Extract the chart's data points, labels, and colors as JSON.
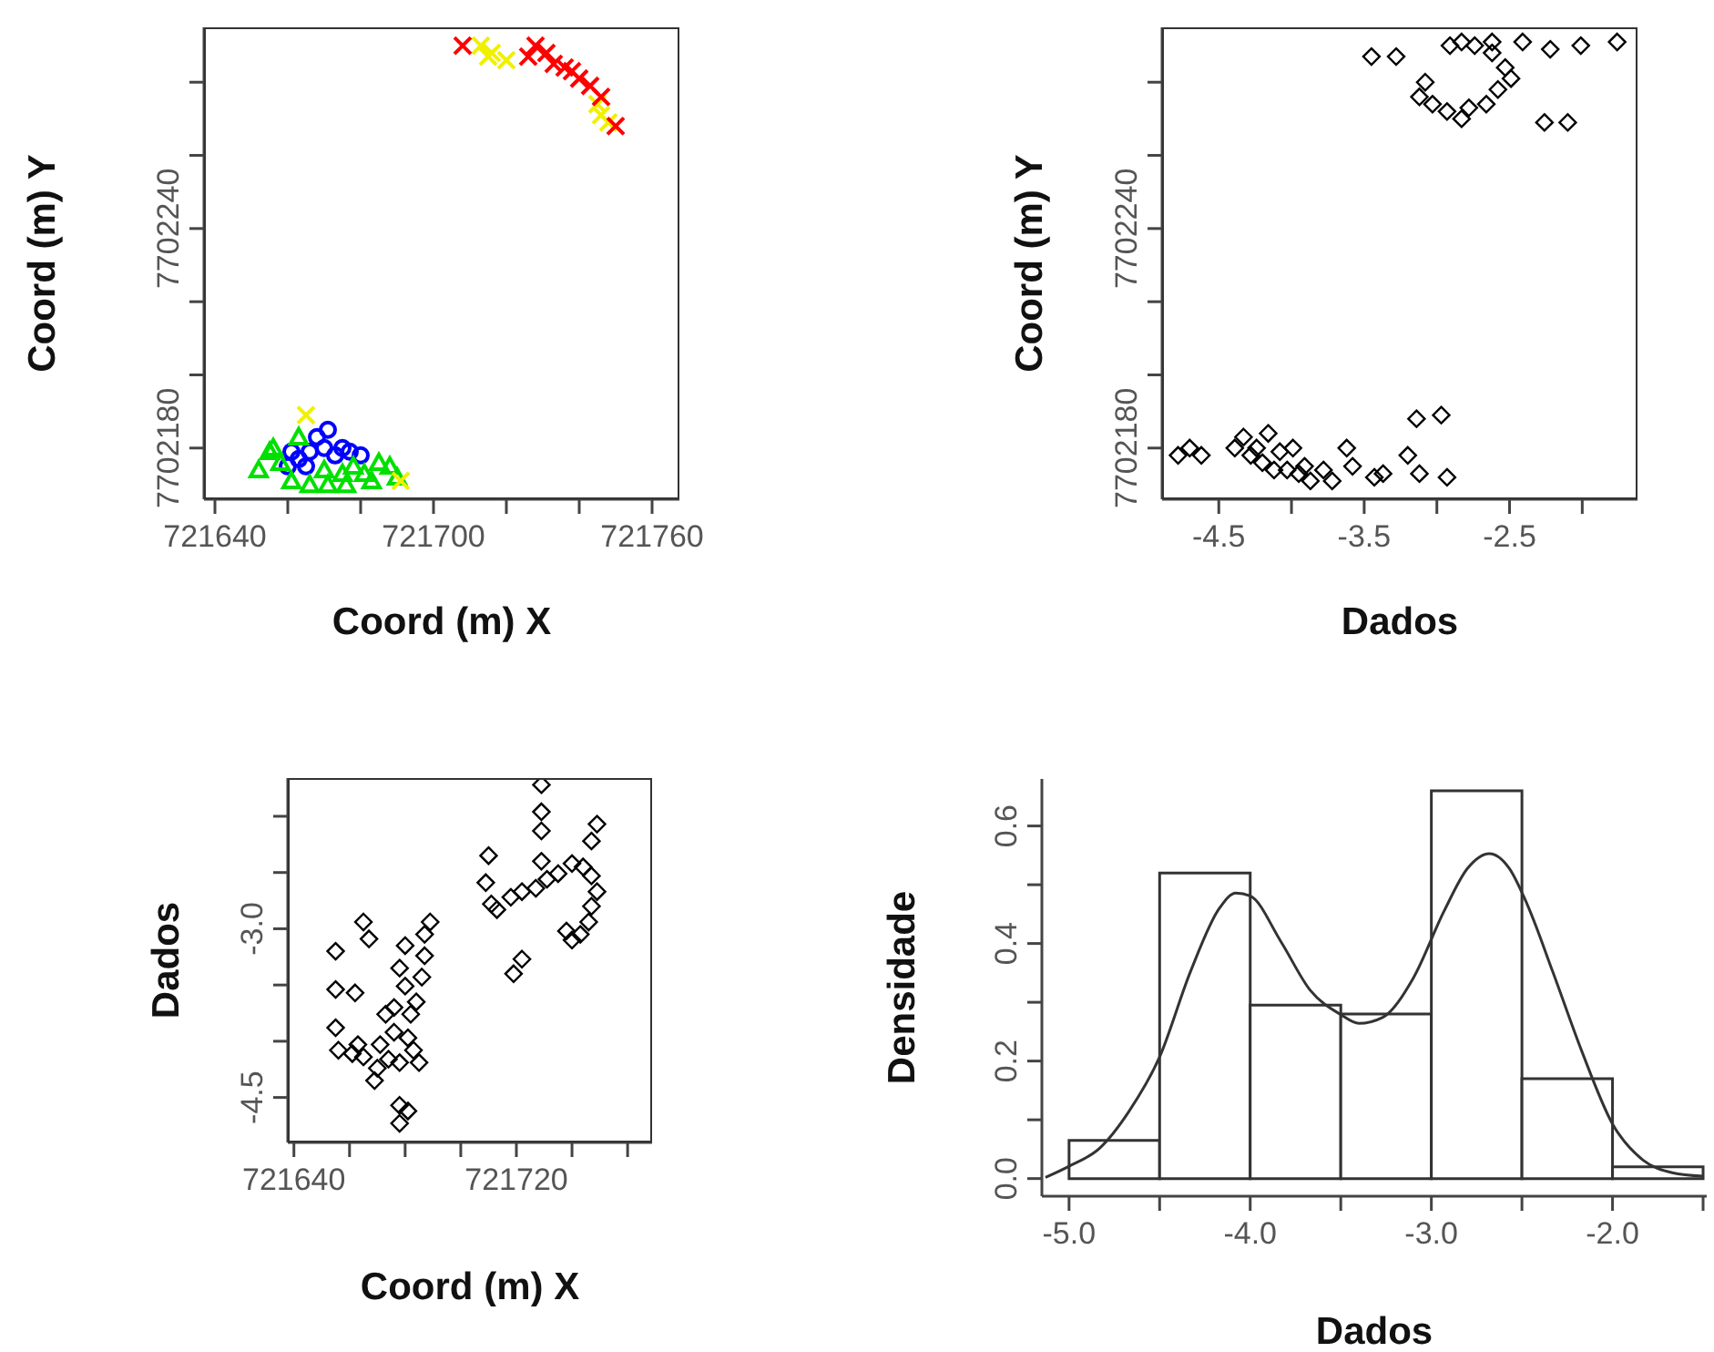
{
  "chart_data": [
    {
      "type": "scatter",
      "xlabel": "Coord (m) X",
      "ylabel": "Coord (m) Y",
      "xlim": [
        721637,
        721767.5
      ],
      "xticks": [
        721640,
        {
          "value": 721660,
          "label": null
        },
        {
          "value": 721680,
          "label": null
        },
        721700,
        {
          "value": 721720,
          "label": null
        },
        {
          "value": 721740,
          "label": null
        },
        721760
      ],
      "ylim": [
        7702166,
        7702295
      ],
      "yticks": [
        7702180,
        {
          "value": 7702200,
          "label": null
        },
        {
          "value": 7702220,
          "label": null
        },
        7702240,
        {
          "value": 7702260,
          "label": null
        },
        {
          "value": 7702280,
          "label": null
        }
      ],
      "series": [
        {
          "color": "#0000ff",
          "marker": "circle",
          "x": [
            721660,
            721661,
            721665,
            721668,
            721670,
            721671,
            721673,
            721675,
            721677,
            721680,
            721666,
            721663
          ],
          "values": [
            7702175,
            7702179,
            7702175,
            7702183,
            7702180,
            7702185,
            7702178,
            7702180,
            7702179,
            7702178,
            7702179,
            7702177
          ]
        },
        {
          "color": "#00e000",
          "marker": "triangle",
          "x": [
            721652,
            721655,
            721658,
            721661,
            721666,
            721671,
            721676,
            721681,
            721685,
            721688,
            721690,
            721670,
            721678,
            721663,
            721656,
            721675,
            721683
          ],
          "values": [
            7702174,
            7702179,
            7702176,
            7702171,
            7702170,
            7702170,
            7702170,
            7702173,
            7702176,
            7702175,
            7702172,
            7702174,
            7702175,
            7702183,
            7702180,
            7702173,
            7702171
          ]
        },
        {
          "color": "#f0f000",
          "marker": "cross",
          "x": [
            721665,
            721691,
            721713,
            721716,
            721720,
            721715,
            721746,
            721748,
            721745
          ],
          "values": [
            7702189,
            7702171,
            7702290,
            7702288,
            7702286,
            7702287,
            7702271,
            7702269,
            7702274
          ]
        },
        {
          "color": "#ff0000",
          "marker": "cross",
          "x": [
            721708,
            721728,
            721733,
            721736,
            721740,
            721743,
            721746,
            721750,
            721731,
            721738,
            721726
          ],
          "values": [
            7702290,
            7702290,
            7702285,
            7702284,
            7702281,
            7702279,
            7702276,
            7702268,
            7702288,
            7702283,
            7702287
          ]
        }
      ]
    },
    {
      "type": "scatter",
      "xlabel": "Dados",
      "ylabel": "Coord (m) Y",
      "xlim": [
        -4.89,
        -1.62
      ],
      "xticks": [
        -4.5,
        {
          "value": -4,
          "label": null
        },
        -3.5,
        {
          "value": -3,
          "label": null
        },
        -2.5,
        {
          "value": -2,
          "label": null
        }
      ],
      "ylim": [
        7702166,
        7702295
      ],
      "yticks": [
        7702180,
        {
          "value": 7702200,
          "label": null
        },
        {
          "value": 7702220,
          "label": null
        },
        7702240,
        {
          "value": 7702260,
          "label": null
        },
        {
          "value": 7702280,
          "label": null
        }
      ],
      "series": [
        {
          "color": "#000000",
          "marker": "diamond",
          "x": [
            -4.78,
            -4.7,
            -4.62,
            -4.39,
            -4.33,
            -4.28,
            -4.2,
            -4.16,
            -4.12,
            -4.08,
            -4.03,
            -3.99,
            -3.95,
            -3.87,
            -3.78,
            -3.72,
            -3.62,
            -3.58,
            -3.43,
            -3.37,
            -3.2,
            -3.12,
            -3.14,
            -2.97,
            -2.93,
            -4.24,
            -3.91,
            -3.45,
            -3.28,
            -3.08,
            -3.12,
            -3.03,
            -2.93,
            -2.83,
            -2.78,
            -2.66,
            -2.58,
            -2.49,
            -2.53,
            -2.62,
            -2.74,
            -2.83,
            -2.91,
            -2.62,
            -2.41,
            -2.22,
            -2.01,
            -1.76,
            -2.26,
            -2.1
          ],
          "values": [
            7702178,
            7702180,
            7702178,
            7702180,
            7702183,
            7702178,
            7702176,
            7702184,
            7702174,
            7702179,
            7702174,
            7702180,
            7702173,
            7702171,
            7702174,
            7702171,
            7702180,
            7702175,
            7702172,
            7702173,
            7702178,
            7702173,
            7702188,
            7702189,
            7702172,
            7702180,
            7702175,
            7702287,
            7702287,
            7702280,
            7702276,
            7702274,
            7702272,
            7702270,
            7702273,
            7702274,
            7702278,
            7702281,
            7702284,
            7702288,
            7702290,
            7702291,
            7702290,
            7702291,
            7702291,
            7702289,
            7702290,
            7702291,
            7702269,
            7702269
          ]
        }
      ]
    },
    {
      "type": "scatter",
      "xlabel": "Coord (m) X",
      "ylabel": "Dados",
      "xlim": [
        721637.8,
        721768.8
      ],
      "xticks": [
        721640,
        {
          "value": 721660,
          "label": null
        },
        {
          "value": 721680,
          "label": null
        },
        {
          "value": 721700,
          "label": null
        },
        721720,
        {
          "value": 721740,
          "label": null
        },
        {
          "value": 721760,
          "label": null
        }
      ],
      "ylim": [
        -4.9,
        -1.66
      ],
      "yticks": [
        -4.5,
        {
          "value": -4,
          "label": null
        },
        {
          "value": -3.5,
          "label": null
        },
        {
          "value": -3,
          "label": "-3.0"
        },
        {
          "value": -2.5,
          "label": null
        },
        {
          "value": -2,
          "label": null
        }
      ],
      "series": [
        {
          "color": "#000000",
          "marker": "diamond",
          "x": [
            721655,
            721655,
            721662,
            721655,
            721665,
            721667,
            721680,
            721678,
            721680,
            721687,
            721689,
            721687,
            721686,
            721684,
            721682,
            721676,
            721673,
            721656,
            721661,
            721665,
            721670,
            721674,
            721678,
            721683,
            721685,
            721678,
            721681,
            721678,
            721669,
            721663,
            721671,
            721676,
            721681,
            721710,
            721709,
            721711,
            721719,
            721722,
            721713,
            721718,
            721722,
            721727,
            721731,
            721735,
            721740,
            721744,
            721747,
            721749,
            721747,
            721746,
            721743,
            721740,
            721738,
            721729,
            721729,
            721729,
            721729,
            721749,
            721747
          ],
          "values": [
            -3.2,
            -3.54,
            -3.57,
            -3.88,
            -2.94,
            -3.09,
            -3.15,
            -3.35,
            -3.51,
            -3.05,
            -2.94,
            -3.24,
            -3.43,
            -3.65,
            -3.76,
            -3.7,
            -3.76,
            -4.08,
            -4.11,
            -4.14,
            -4.24,
            -4.16,
            -4.19,
            -4.08,
            -4.19,
            -4.57,
            -4.62,
            -4.73,
            -4.35,
            -4.03,
            -4.03,
            -3.92,
            -3.97,
            -2.35,
            -2.59,
            -2.78,
            -3.4,
            -3.27,
            -2.83,
            -2.72,
            -2.67,
            -2.64,
            -2.56,
            -2.51,
            -2.42,
            -2.45,
            -2.53,
            -2.67,
            -2.8,
            -2.94,
            -3.05,
            -3.1,
            -3.02,
            -1.72,
            -1.96,
            -2.13,
            -2.4,
            -2.07,
            -2.22
          ]
        }
      ]
    },
    {
      "type": "histogram",
      "xlabel": "Dados",
      "ylabel": "Densidade",
      "xlim": [
        -5.15,
        -1.48
      ],
      "xticks": [
        {
          "value": -5,
          "label": "-5.0"
        },
        {
          "value": -4.5,
          "label": null
        },
        {
          "value": -4,
          "label": "-4.0"
        },
        {
          "value": -3.5,
          "label": null
        },
        {
          "value": -3,
          "label": "-3.0"
        },
        {
          "value": -2.5,
          "label": null
        },
        {
          "value": -2,
          "label": "-2.0"
        },
        {
          "value": -1.5,
          "label": null
        }
      ],
      "ylim": [
        -0.03,
        0.68
      ],
      "yticks": [
        {
          "value": 0,
          "label": "0.0"
        },
        {
          "value": 0.1,
          "label": null
        },
        {
          "value": 0.2,
          "label": "0.2"
        },
        {
          "value": 0.3,
          "label": null
        },
        {
          "value": 0.4,
          "label": "0.4"
        },
        {
          "value": 0.5,
          "label": null
        },
        {
          "value": 0.6,
          "label": "0.6"
        }
      ],
      "color": "#ffffff",
      "bins": [
        -5,
        -4.5,
        -4,
        -3.5,
        -3,
        -2.5,
        -2,
        -1.5
      ],
      "values": [
        0.065,
        0.52,
        0.295,
        0.28,
        0.66,
        0.17,
        0.02
      ],
      "series": [
        {
          "type": "line",
          "color": "#333333",
          "x": [
            -5.13,
            -5,
            -4.83,
            -4.67,
            -4.5,
            -4.33,
            -4.17,
            -4.08,
            -4,
            -3.83,
            -3.67,
            -3.5,
            -3.4,
            -3.27,
            -3.1,
            -2.93,
            -2.8,
            -2.68,
            -2.57,
            -2.47,
            -2.33,
            -2.17,
            -2,
            -1.83,
            -1.67,
            -1.5
          ],
          "values": [
            0.002,
            0.021,
            0.052,
            0.114,
            0.207,
            0.352,
            0.46,
            0.486,
            0.481,
            0.403,
            0.321,
            0.279,
            0.264,
            0.274,
            0.341,
            0.455,
            0.528,
            0.553,
            0.528,
            0.466,
            0.352,
            0.217,
            0.093,
            0.031,
            0.01,
            0.004
          ]
        }
      ]
    }
  ]
}
